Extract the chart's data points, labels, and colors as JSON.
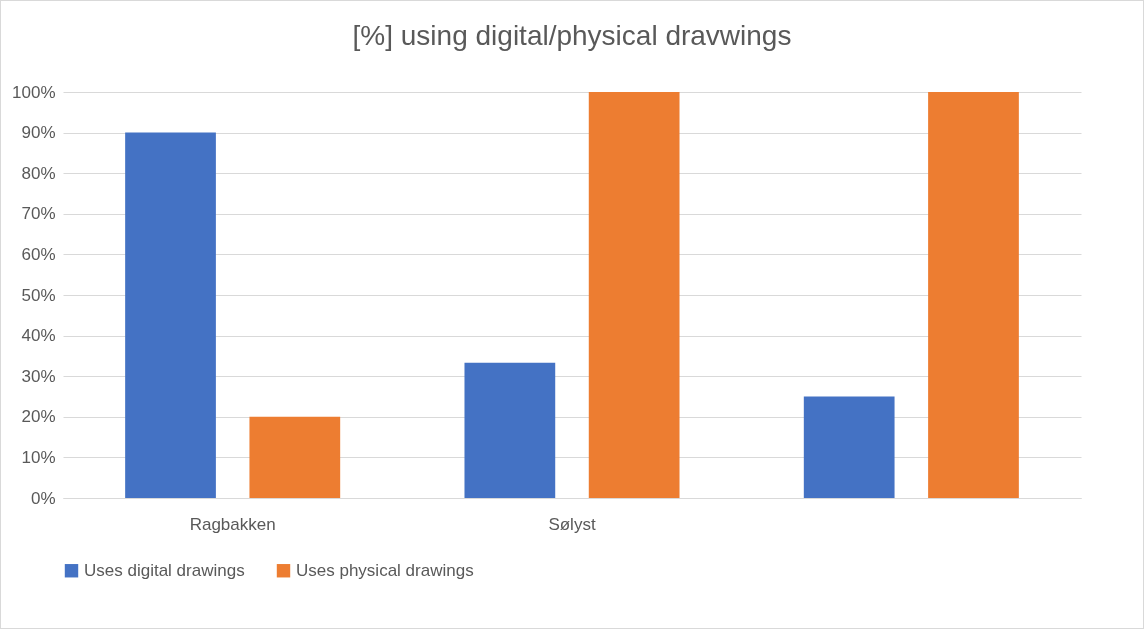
{
  "chart_data": {
    "type": "bar",
    "title": "[%] using digital/physical dravwings",
    "categories": [
      "Ragbakken",
      "Sølyst",
      null
    ],
    "series": [
      {
        "name": "Uses digital drawings",
        "color": "#4472c4",
        "values": [
          90,
          33.3,
          25
        ]
      },
      {
        "name": "Uses physical drawings",
        "color": "#ed7d31",
        "values": [
          20,
          100,
          100
        ]
      }
    ],
    "ylim": [
      0,
      100
    ],
    "yticks": [
      {
        "value": 0,
        "label": "0%"
      },
      {
        "value": 10,
        "label": "10%"
      },
      {
        "value": 20,
        "label": "20%"
      },
      {
        "value": 30,
        "label": "30%"
      },
      {
        "value": 40,
        "label": "40%"
      },
      {
        "value": 50,
        "label": "50%"
      },
      {
        "value": 60,
        "label": "60%"
      },
      {
        "value": 70,
        "label": "70%"
      },
      {
        "value": 80,
        "label": "80%"
      },
      {
        "value": 90,
        "label": "90%"
      },
      {
        "value": 100,
        "label": "100%"
      }
    ],
    "grid": "y",
    "legend": "bottom"
  }
}
